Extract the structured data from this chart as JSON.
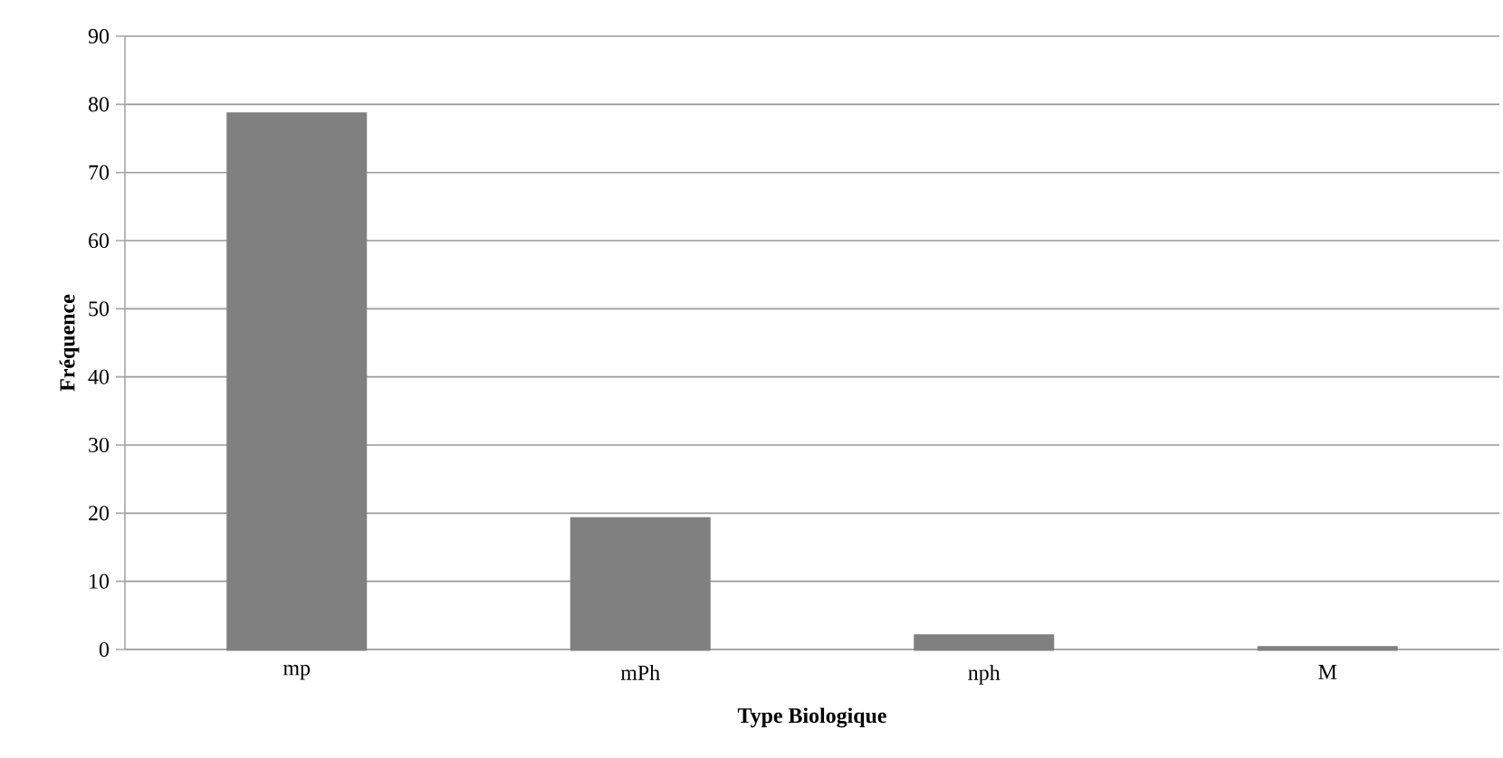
{
  "chart_data": {
    "type": "bar",
    "xlabel": "Type Biologique",
    "ylabel": "Fréquence",
    "categories": [
      "mp",
      "mPh",
      "nph",
      "M"
    ],
    "values": [
      78.6,
      19.2,
      2.0,
      0.3
    ],
    "color": "#808080",
    "ylim": [
      0,
      90
    ],
    "yticks": [
      0,
      10,
      20,
      30,
      40,
      50,
      60,
      70,
      80,
      90
    ],
    "grid": "y"
  }
}
